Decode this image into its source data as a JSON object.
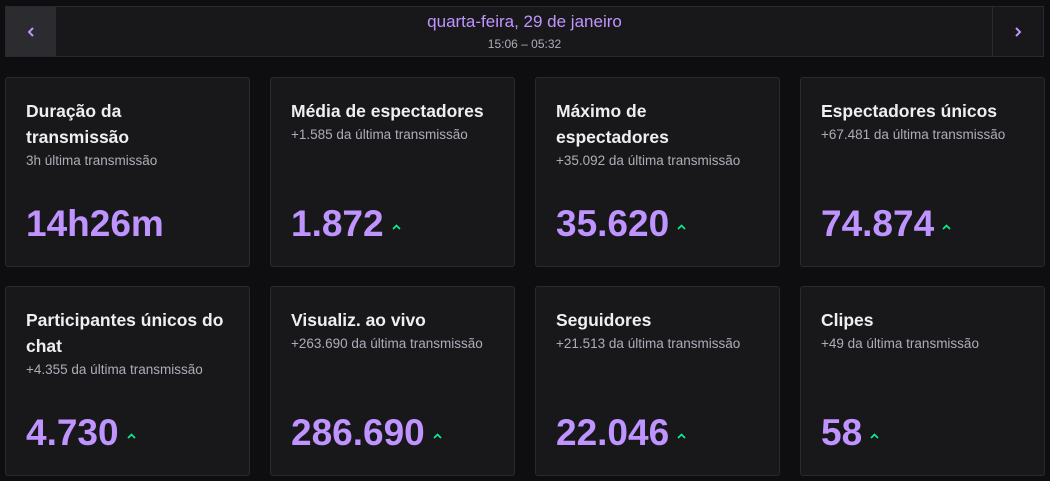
{
  "header": {
    "date": "quarta-feira, 29 de janeiro",
    "time_range": "15:06 – 05:32"
  },
  "colors": {
    "accent": "#bf94ff",
    "trend_up": "#00f593",
    "background": "#0e0e10",
    "card": "#18181b"
  },
  "cards": [
    {
      "title": "Duração da transmissão",
      "subtitle": "3h última transmissão",
      "value": "14h26m",
      "trend": "none"
    },
    {
      "title": "Média de espectadores",
      "subtitle": "+1.585 da última transmissão",
      "value": "1.872",
      "trend": "up"
    },
    {
      "title": "Máximo de espectadores",
      "subtitle": "+35.092 da última transmissão",
      "value": "35.620",
      "trend": "up"
    },
    {
      "title": "Espectadores únicos",
      "subtitle": "+67.481 da última transmissão",
      "value": "74.874",
      "trend": "up"
    },
    {
      "title": "Participantes únicos do chat",
      "subtitle": "+4.355 da última transmissão",
      "value": "4.730",
      "trend": "up"
    },
    {
      "title": "Visualiz. ao vivo",
      "subtitle": "+263.690 da última transmissão",
      "value": "286.690",
      "trend": "up"
    },
    {
      "title": "Seguidores",
      "subtitle": "+21.513 da última transmissão",
      "value": "22.046",
      "trend": "up"
    },
    {
      "title": "Clipes",
      "subtitle": "+49 da última transmissão",
      "value": "58",
      "trend": "up"
    }
  ]
}
